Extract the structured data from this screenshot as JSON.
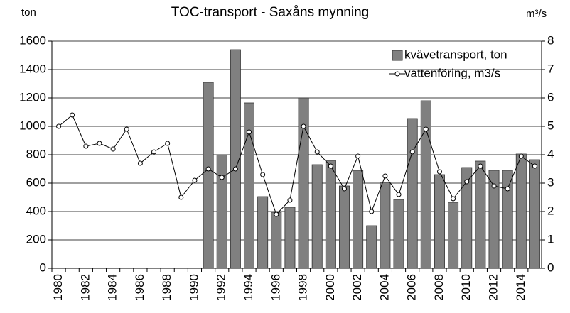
{
  "chart_data": {
    "type": "bar_line",
    "title": "TOC-transport - Saxåns mynning",
    "y_label": "ton",
    "y2_label": "m³/s",
    "categories": [
      "1980",
      null,
      "1982",
      null,
      "1984",
      null,
      "1986",
      null,
      "1988",
      null,
      "1990",
      null,
      "1992",
      null,
      "1994",
      null,
      "1996",
      null,
      "1998",
      null,
      "2000",
      null,
      "2002",
      null,
      "2004",
      null,
      "2006",
      null,
      "2008",
      null,
      "2010",
      null,
      "2012",
      null,
      "2014",
      null
    ],
    "series": [
      {
        "name": "kvävetransport, ton",
        "type": "bar",
        "color": "#808080",
        "values": [
          null,
          null,
          null,
          null,
          null,
          null,
          null,
          null,
          null,
          null,
          null,
          1310,
          800,
          1540,
          1165,
          505,
          395,
          430,
          1200,
          730,
          760,
          580,
          690,
          300,
          605,
          485,
          1055,
          1180,
          660,
          465,
          710,
          755,
          690,
          690,
          805,
          765
        ]
      },
      {
        "name": "vattenföring, m3/s",
        "type": "line",
        "axis": "y2",
        "color": "#000000",
        "values": [
          5.0,
          5.4,
          4.3,
          4.4,
          4.2,
          4.9,
          3.7,
          4.1,
          4.4,
          2.5,
          3.1,
          3.5,
          3.2,
          3.5,
          4.8,
          3.3,
          1.9,
          2.4,
          5.0,
          4.1,
          3.6,
          2.8,
          3.95,
          2.0,
          3.25,
          2.6,
          4.1,
          4.9,
          3.4,
          2.45,
          3.05,
          3.6,
          2.9,
          2.8,
          3.95,
          3.6
        ]
      }
    ],
    "ylim": [
      0,
      1600
    ],
    "yticks": [
      0,
      200,
      400,
      600,
      800,
      1000,
      1200,
      1400,
      1600
    ],
    "y2lim": [
      0,
      8
    ],
    "y2ticks": [
      0,
      1,
      2,
      3,
      4,
      5,
      6,
      7,
      8
    ],
    "grid": true,
    "legend": "upper right"
  }
}
